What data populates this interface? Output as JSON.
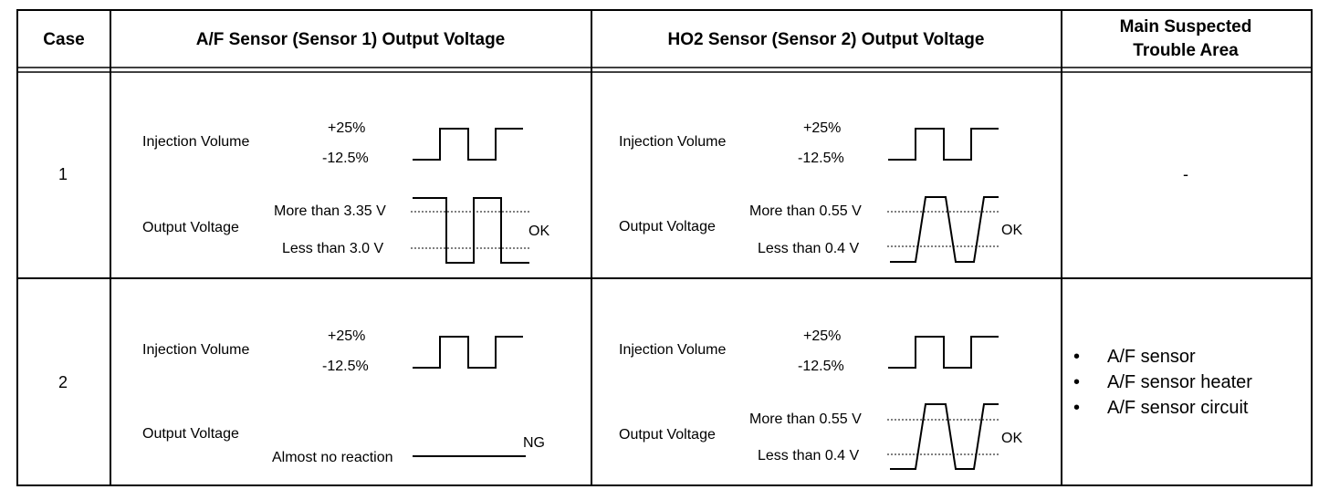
{
  "headers": {
    "case": "Case",
    "af": "A/F Sensor (Sensor 1) Output Voltage",
    "ho2": "HO2 Sensor (Sensor 2) Output Voltage",
    "trouble_line1": "Main Suspected",
    "trouble_line2": "Trouble Area"
  },
  "rows": [
    {
      "case": "1",
      "af": {
        "injection_label": "Injection Volume",
        "inj_high": "+25%",
        "inj_low": "-12.5%",
        "output_label": "Output Voltage",
        "v_high": "More than 3.35 V",
        "v_low": "Less than 3.0 V",
        "result": "OK"
      },
      "ho2": {
        "injection_label": "Injection Volume",
        "inj_high": "+25%",
        "inj_low": "-12.5%",
        "output_label": "Output Voltage",
        "v_high": "More than 0.55 V",
        "v_low": "Less than 0.4 V",
        "result": "OK"
      },
      "trouble": "-"
    },
    {
      "case": "2",
      "af": {
        "injection_label": "Injection Volume",
        "inj_high": "+25%",
        "inj_low": "-12.5%",
        "output_label": "Output Voltage",
        "no_reaction": "Almost no reaction",
        "result": "NG"
      },
      "ho2": {
        "injection_label": "Injection Volume",
        "inj_high": "+25%",
        "inj_low": "-12.5%",
        "output_label": "Output Voltage",
        "v_high": "More than 0.55 V",
        "v_low": "Less than 0.4 V",
        "result": "OK"
      },
      "trouble_items": [
        "A/F sensor",
        "A/F sensor heater",
        "A/F sensor circuit"
      ]
    }
  ]
}
